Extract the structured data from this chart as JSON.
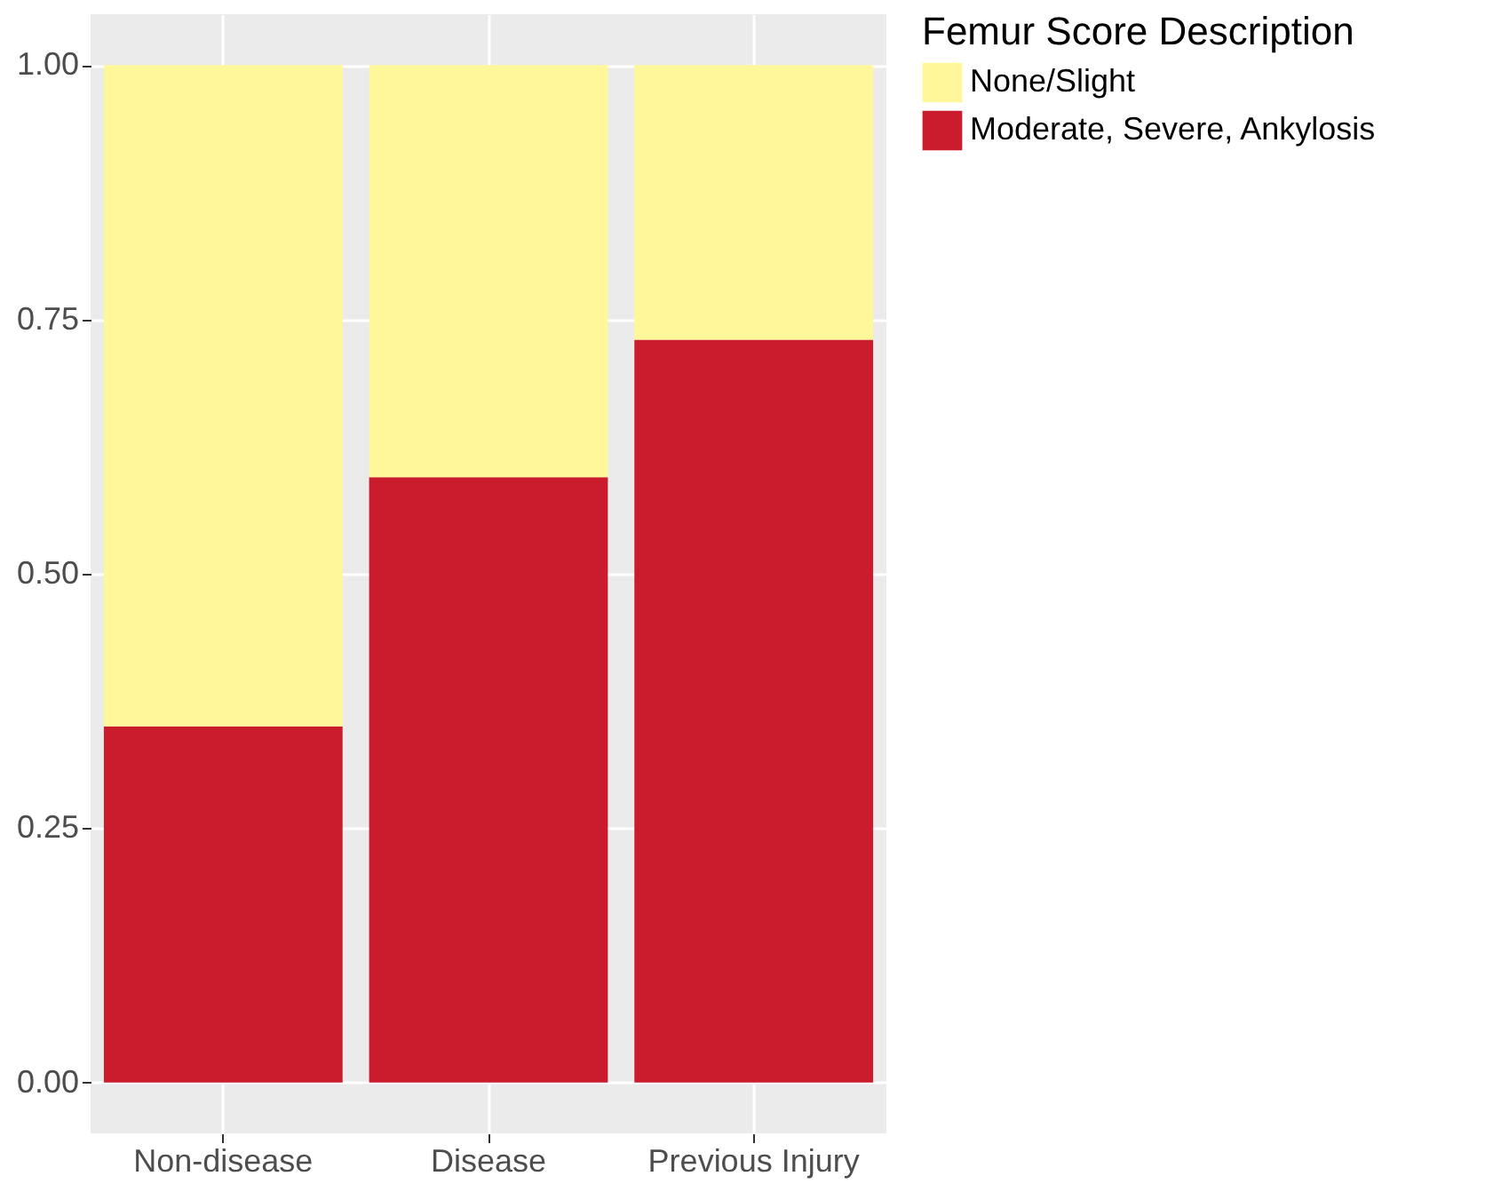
{
  "chart_data": {
    "type": "bar",
    "stacked": true,
    "legend_title": "Femur Score Description",
    "legend": "right",
    "grid": true,
    "categories": [
      "Non-disease",
      "Disease",
      "Previous Injury"
    ],
    "series": [
      {
        "name": "Moderate, Severe, Ankylosis",
        "color": "#cb1c2e",
        "values": [
          0.35,
          0.595,
          0.73
        ]
      },
      {
        "name": "None/Slight",
        "color": "#fff799",
        "values": [
          0.65,
          0.405,
          0.27
        ]
      }
    ],
    "ylim": [
      -0.05,
      1.05
    ],
    "yticks": [
      {
        "value": 0,
        "label": "0.00"
      },
      {
        "value": 0.25,
        "label": "0.25"
      },
      {
        "value": 0.5,
        "label": "0.50"
      },
      {
        "value": 0.75,
        "label": "0.75"
      },
      {
        "value": 1,
        "label": "1.00"
      }
    ]
  }
}
